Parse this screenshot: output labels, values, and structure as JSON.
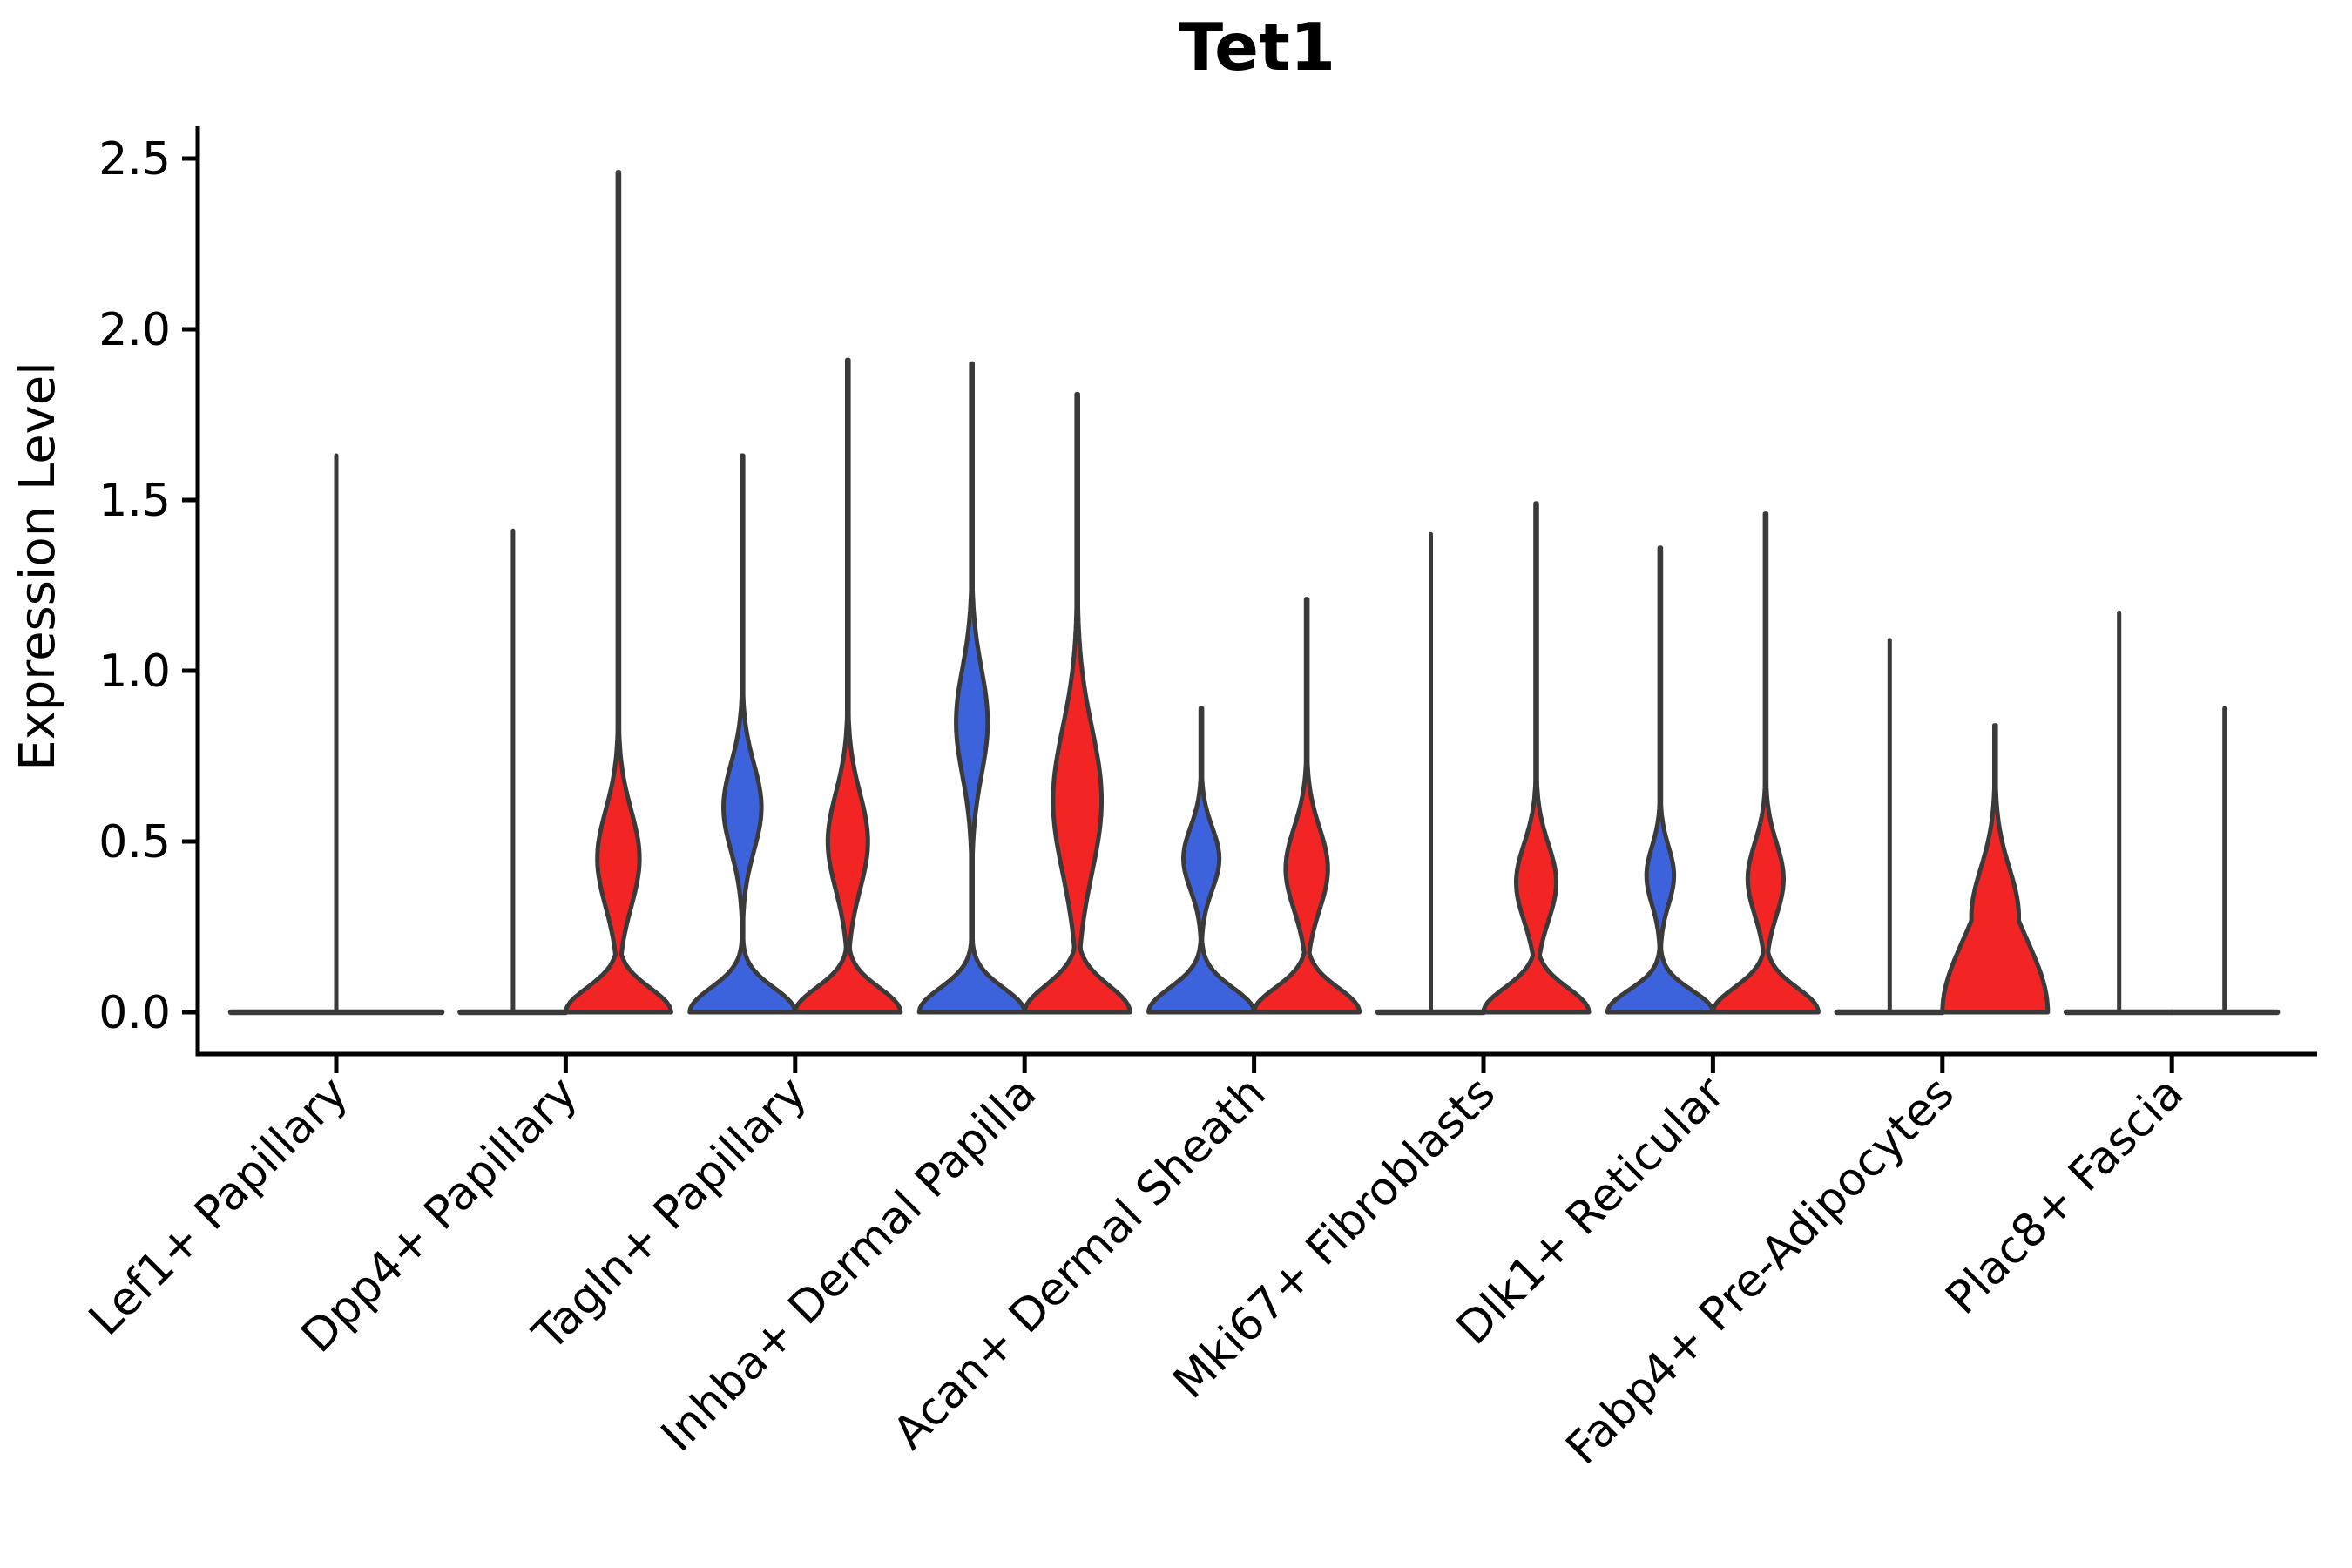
{
  "title": "Tet1",
  "chart_data": {
    "type": "violin",
    "title": "Tet1",
    "ylabel": "Expression Level",
    "ylim": [
      -0.12,
      2.62
    ],
    "yticks": [
      0.0,
      0.5,
      1.0,
      1.5,
      2.0,
      2.5
    ],
    "ytick_labels": [
      "0.0",
      "0.5",
      "1.0",
      "1.5",
      "2.0",
      "2.5"
    ],
    "grid": false,
    "legend_position": "none",
    "background_color": "#ffffff",
    "outline_color": "#3a3a3a",
    "split_colors": {
      "blue": "#3d63dc",
      "red": "#f32424"
    },
    "categories": [
      "Lef1+ Papillary",
      "Dpp4+ Papillary",
      "Tagln+ Papillary",
      "Inhba+ Dermal Papilla",
      "Acan+ Dermal Sheath",
      "Mki67+ Fibroblasts",
      "Dlk1+ Reticular",
      "Fabp4+ Pre-Adipocytes",
      "Plac8+ Fascia"
    ],
    "violins": [
      {
        "category_index": 0,
        "category": "Lef1+ Papillary",
        "slot": "full",
        "color": "none",
        "flat": true,
        "max_expression": 1.63
      },
      {
        "category_index": 1,
        "category": "Dpp4+ Papillary",
        "slot": "left",
        "color": "blue",
        "flat": true,
        "max_expression": 1.41
      },
      {
        "category_index": 1,
        "category": "Dpp4+ Papillary",
        "slot": "right",
        "color": "red",
        "flat": false,
        "max_expression": 2.46,
        "base_scale": 0.1,
        "bulge": {
          "center": 0.45,
          "sigma": 0.2,
          "amp": 0.4
        }
      },
      {
        "category_index": 2,
        "category": "Tagln+ Papillary",
        "slot": "left",
        "color": "blue",
        "flat": false,
        "max_expression": 1.63,
        "base_scale": 0.1,
        "bulge": {
          "center": 0.6,
          "sigma": 0.18,
          "amp": 0.36
        }
      },
      {
        "category_index": 2,
        "category": "Tagln+ Papillary",
        "slot": "right",
        "color": "red",
        "flat": false,
        "max_expression": 1.91,
        "base_scale": 0.1,
        "bulge": {
          "center": 0.5,
          "sigma": 0.2,
          "amp": 0.38
        }
      },
      {
        "category_index": 3,
        "category": "Inhba+ Dermal Papilla",
        "slot": "left",
        "color": "blue",
        "flat": false,
        "max_expression": 1.9,
        "base_scale": 0.1,
        "bulge": {
          "center": 0.85,
          "sigma": 0.22,
          "amp": 0.3
        }
      },
      {
        "category_index": 3,
        "category": "Inhba+ Dermal Papilla",
        "slot": "right",
        "color": "red",
        "flat": false,
        "max_expression": 1.81,
        "base_scale": 0.11,
        "bulge": {
          "center": 0.62,
          "sigma": 0.3,
          "amp": 0.46
        }
      },
      {
        "category_index": 4,
        "category": "Acan+ Dermal Sheath",
        "slot": "left",
        "color": "blue",
        "flat": false,
        "max_expression": 0.89,
        "base_scale": 0.1,
        "bulge": {
          "center": 0.45,
          "sigma": 0.13,
          "amp": 0.34
        }
      },
      {
        "category_index": 4,
        "category": "Acan+ Dermal Sheath",
        "slot": "right",
        "color": "red",
        "flat": false,
        "max_expression": 1.21,
        "base_scale": 0.1,
        "bulge": {
          "center": 0.42,
          "sigma": 0.17,
          "amp": 0.4
        }
      },
      {
        "category_index": 5,
        "category": "Mki67+ Fibroblasts",
        "slot": "left",
        "color": "blue",
        "flat": true,
        "max_expression": 1.4
      },
      {
        "category_index": 5,
        "category": "Mki67+ Fibroblasts",
        "slot": "right",
        "color": "red",
        "flat": false,
        "max_expression": 1.49,
        "base_scale": 0.1,
        "bulge": {
          "center": 0.38,
          "sigma": 0.16,
          "amp": 0.38
        }
      },
      {
        "category_index": 6,
        "category": "Dlk1+ Reticular",
        "slot": "left",
        "color": "blue",
        "flat": false,
        "max_expression": 1.36,
        "base_scale": 0.09,
        "bulge": {
          "center": 0.4,
          "sigma": 0.12,
          "amp": 0.26
        }
      },
      {
        "category_index": 6,
        "category": "Dlk1+ Reticular",
        "slot": "right",
        "color": "red",
        "flat": false,
        "max_expression": 1.46,
        "base_scale": 0.1,
        "bulge": {
          "center": 0.39,
          "sigma": 0.15,
          "amp": 0.34
        }
      },
      {
        "category_index": 7,
        "category": "Fabp4+ Pre-Adipocytes",
        "slot": "left",
        "color": "blue",
        "flat": true,
        "max_expression": 1.09
      },
      {
        "category_index": 7,
        "category": "Fabp4+ Pre-Adipocytes",
        "slot": "right",
        "color": "red",
        "flat": false,
        "max_expression": 0.84,
        "base_scale": 0.3,
        "bulge": {
          "center": 0.28,
          "sigma": 0.2,
          "amp": 0.45
        }
      },
      {
        "category_index": 8,
        "category": "Plac8+ Fascia",
        "slot": "left",
        "color": "blue",
        "flat": true,
        "max_expression": 1.17
      },
      {
        "category_index": 8,
        "category": "Plac8+ Fascia",
        "slot": "right",
        "color": "red",
        "flat": true,
        "max_expression": 0.89
      }
    ]
  }
}
